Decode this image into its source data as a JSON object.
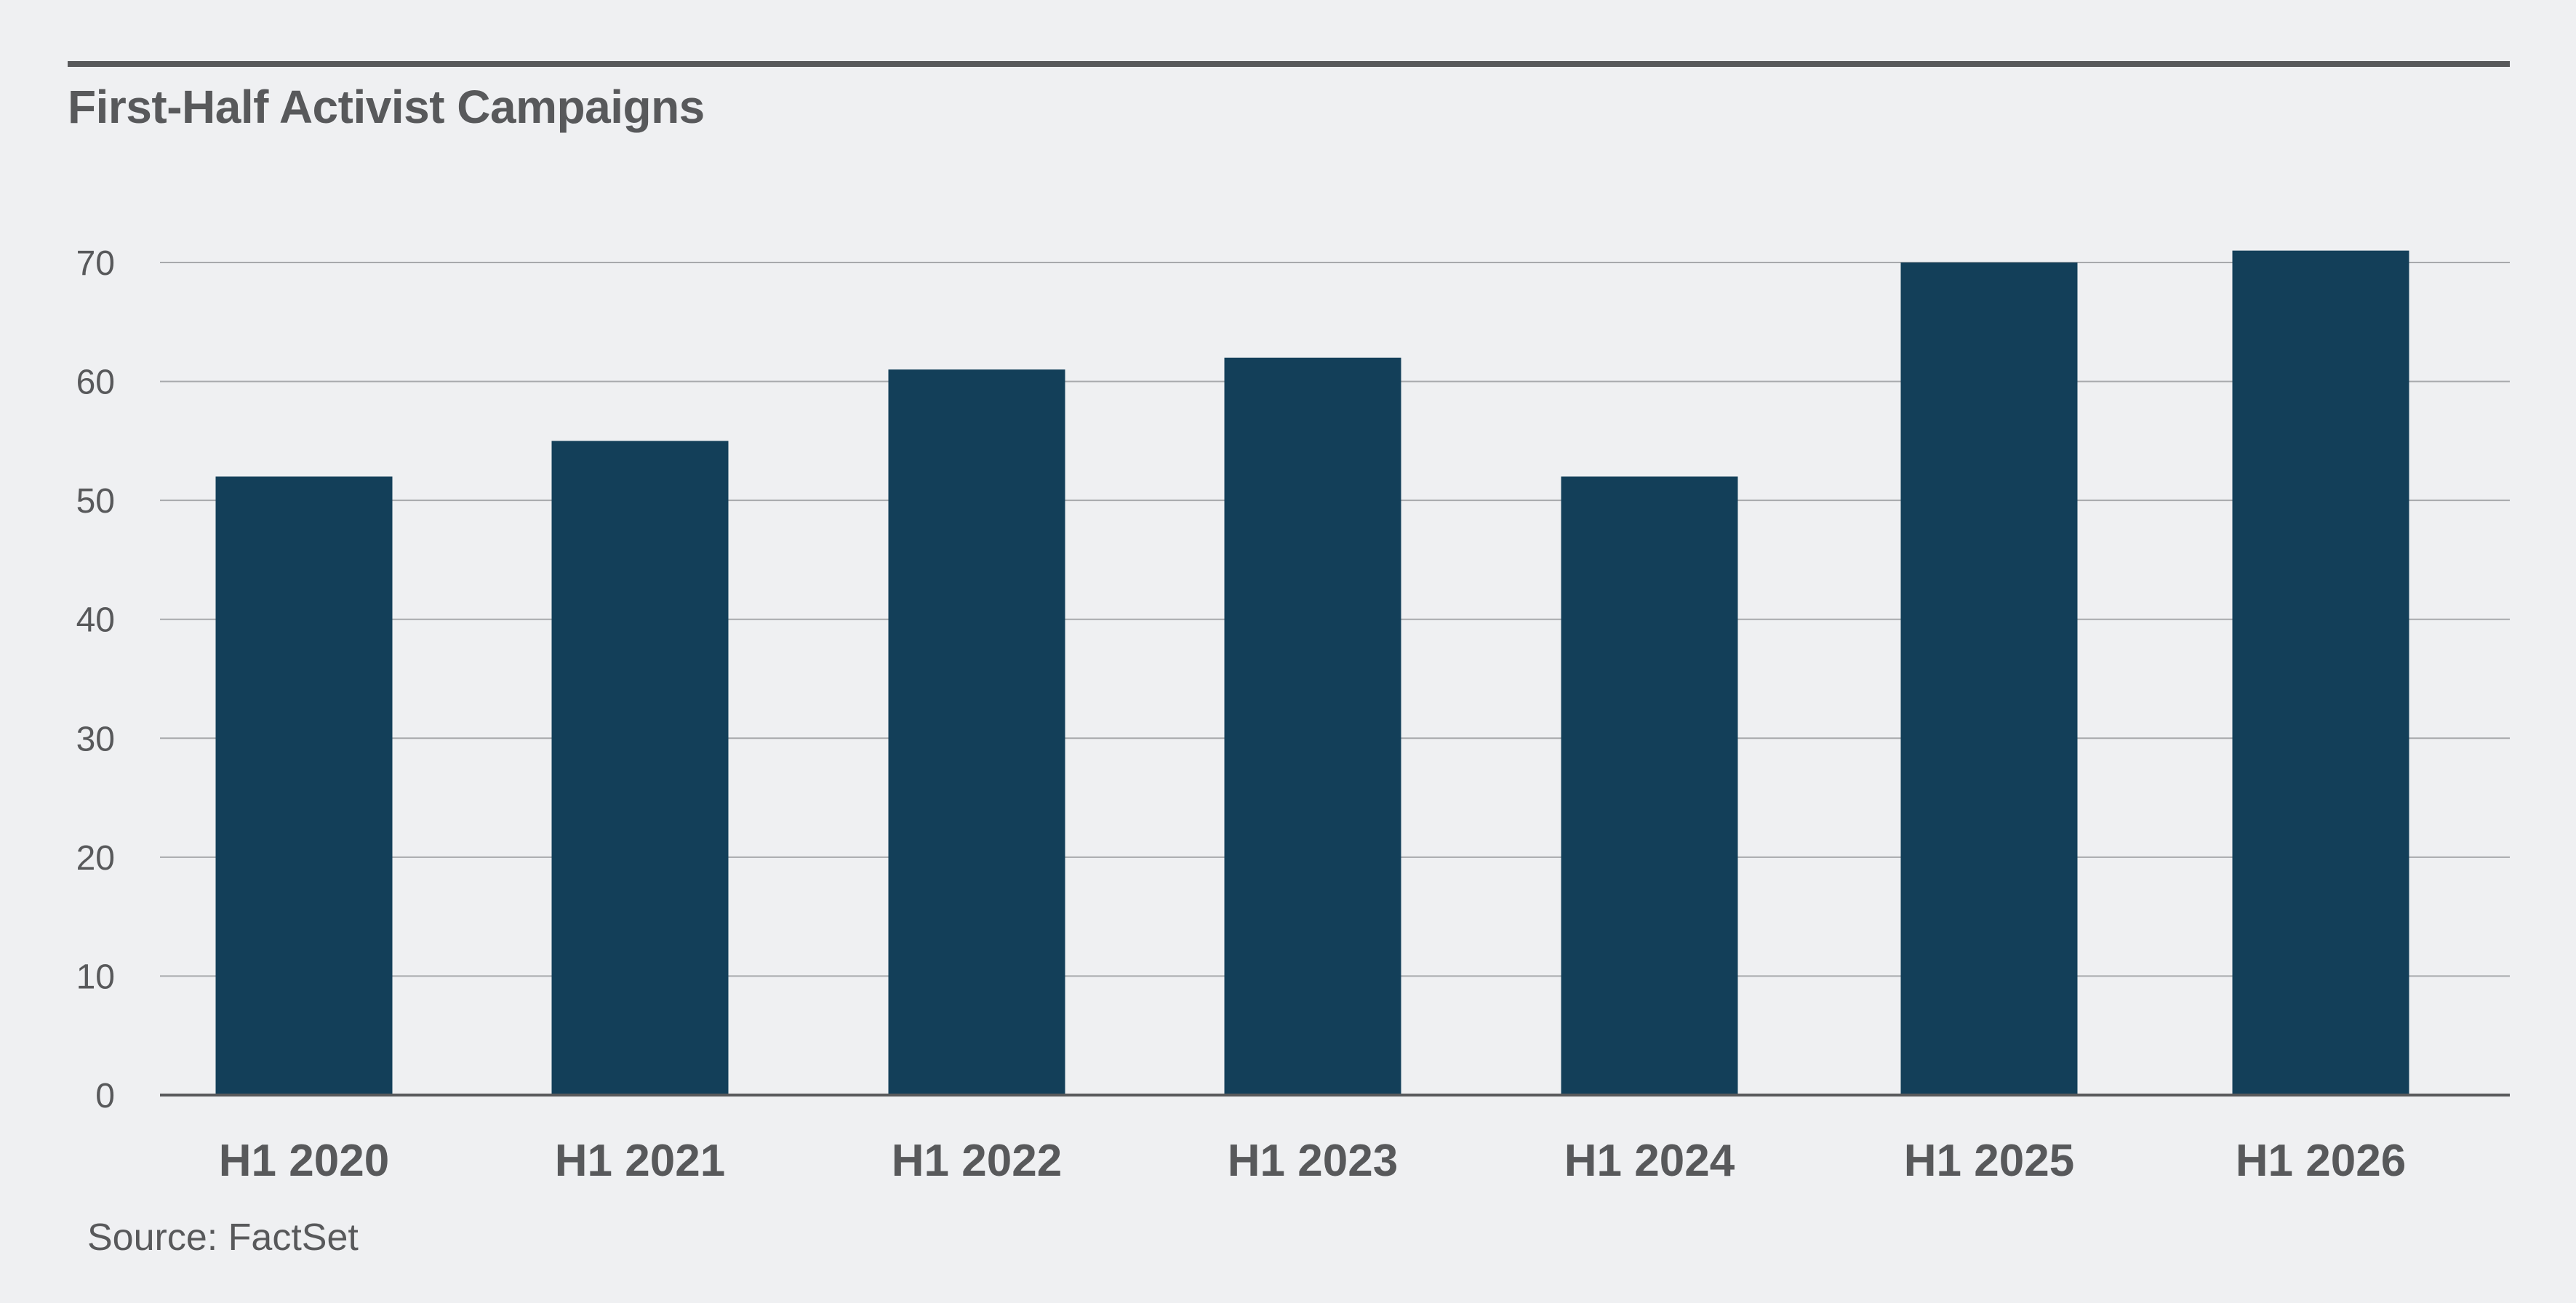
{
  "title": "First-Half Activist Campaigns",
  "source": "Source: FactSet",
  "chart_data": {
    "type": "bar",
    "title": "First-Half Activist Campaigns",
    "xlabel": "",
    "ylabel": "",
    "categories": [
      "H1 2020",
      "H1 2021",
      "H1 2022",
      "H1 2023",
      "H1 2024",
      "H1 2025",
      "H1 2026"
    ],
    "values": [
      52,
      55,
      61,
      62,
      52,
      70,
      71
    ],
    "ylim": [
      0,
      70
    ],
    "yticks": [
      0,
      10,
      20,
      30,
      40,
      50,
      60,
      70
    ],
    "grid": true,
    "legend": "none",
    "bar_color": "#133f59"
  }
}
